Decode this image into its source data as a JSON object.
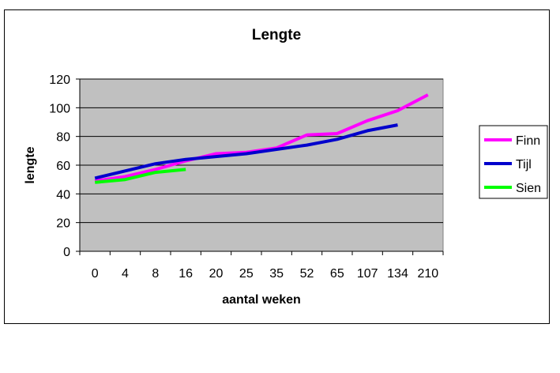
{
  "chart_data": {
    "type": "line",
    "title": "Lengte",
    "xlabel": "aantal weken",
    "ylabel": "lengte",
    "categories": [
      "0",
      "4",
      "8",
      "16",
      "20",
      "25",
      "35",
      "52",
      "65",
      "107",
      "134",
      "210"
    ],
    "ylim": [
      0,
      120
    ],
    "yticks": [
      0,
      20,
      40,
      60,
      80,
      100,
      120
    ],
    "grid": true,
    "legend_position": "right",
    "plot_background": "#c0c0c0",
    "series": [
      {
        "name": "Finn",
        "color": "#ff00ff",
        "values": [
          49,
          52,
          57,
          63,
          68,
          69,
          72,
          81,
          82,
          91,
          98,
          109
        ]
      },
      {
        "name": "Tijl",
        "color": "#0000cc",
        "values": [
          51,
          56,
          61,
          64,
          66,
          68,
          71,
          74,
          78,
          84,
          88,
          null
        ]
      },
      {
        "name": "Sien",
        "color": "#00ff00",
        "values": [
          48,
          50,
          55,
          57,
          null,
          null,
          null,
          null,
          null,
          null,
          null,
          null
        ]
      }
    ]
  }
}
